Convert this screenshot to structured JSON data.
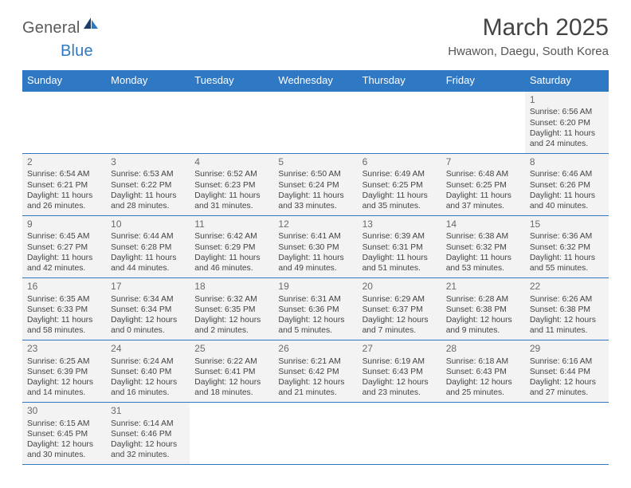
{
  "logo": {
    "general": "General",
    "blue": "Blue"
  },
  "title": "March 2025",
  "location": "Hwawon, Daegu, South Korea",
  "colors": {
    "brand_blue": "#2f78c3",
    "cell_bg": "#f3f3f3",
    "text": "#444444",
    "title": "#444444",
    "logo_gray": "#5a5a5a"
  },
  "day_headers": [
    "Sunday",
    "Monday",
    "Tuesday",
    "Wednesday",
    "Thursday",
    "Friday",
    "Saturday"
  ],
  "weeks": [
    [
      null,
      null,
      null,
      null,
      null,
      null,
      {
        "d": "1",
        "sr": "Sunrise: 6:56 AM",
        "ss": "Sunset: 6:20 PM",
        "dl1": "Daylight: 11 hours",
        "dl2": "and 24 minutes."
      }
    ],
    [
      {
        "d": "2",
        "sr": "Sunrise: 6:54 AM",
        "ss": "Sunset: 6:21 PM",
        "dl1": "Daylight: 11 hours",
        "dl2": "and 26 minutes."
      },
      {
        "d": "3",
        "sr": "Sunrise: 6:53 AM",
        "ss": "Sunset: 6:22 PM",
        "dl1": "Daylight: 11 hours",
        "dl2": "and 28 minutes."
      },
      {
        "d": "4",
        "sr": "Sunrise: 6:52 AM",
        "ss": "Sunset: 6:23 PM",
        "dl1": "Daylight: 11 hours",
        "dl2": "and 31 minutes."
      },
      {
        "d": "5",
        "sr": "Sunrise: 6:50 AM",
        "ss": "Sunset: 6:24 PM",
        "dl1": "Daylight: 11 hours",
        "dl2": "and 33 minutes."
      },
      {
        "d": "6",
        "sr": "Sunrise: 6:49 AM",
        "ss": "Sunset: 6:25 PM",
        "dl1": "Daylight: 11 hours",
        "dl2": "and 35 minutes."
      },
      {
        "d": "7",
        "sr": "Sunrise: 6:48 AM",
        "ss": "Sunset: 6:25 PM",
        "dl1": "Daylight: 11 hours",
        "dl2": "and 37 minutes."
      },
      {
        "d": "8",
        "sr": "Sunrise: 6:46 AM",
        "ss": "Sunset: 6:26 PM",
        "dl1": "Daylight: 11 hours",
        "dl2": "and 40 minutes."
      }
    ],
    [
      {
        "d": "9",
        "sr": "Sunrise: 6:45 AM",
        "ss": "Sunset: 6:27 PM",
        "dl1": "Daylight: 11 hours",
        "dl2": "and 42 minutes."
      },
      {
        "d": "10",
        "sr": "Sunrise: 6:44 AM",
        "ss": "Sunset: 6:28 PM",
        "dl1": "Daylight: 11 hours",
        "dl2": "and 44 minutes."
      },
      {
        "d": "11",
        "sr": "Sunrise: 6:42 AM",
        "ss": "Sunset: 6:29 PM",
        "dl1": "Daylight: 11 hours",
        "dl2": "and 46 minutes."
      },
      {
        "d": "12",
        "sr": "Sunrise: 6:41 AM",
        "ss": "Sunset: 6:30 PM",
        "dl1": "Daylight: 11 hours",
        "dl2": "and 49 minutes."
      },
      {
        "d": "13",
        "sr": "Sunrise: 6:39 AM",
        "ss": "Sunset: 6:31 PM",
        "dl1": "Daylight: 11 hours",
        "dl2": "and 51 minutes."
      },
      {
        "d": "14",
        "sr": "Sunrise: 6:38 AM",
        "ss": "Sunset: 6:32 PM",
        "dl1": "Daylight: 11 hours",
        "dl2": "and 53 minutes."
      },
      {
        "d": "15",
        "sr": "Sunrise: 6:36 AM",
        "ss": "Sunset: 6:32 PM",
        "dl1": "Daylight: 11 hours",
        "dl2": "and 55 minutes."
      }
    ],
    [
      {
        "d": "16",
        "sr": "Sunrise: 6:35 AM",
        "ss": "Sunset: 6:33 PM",
        "dl1": "Daylight: 11 hours",
        "dl2": "and 58 minutes."
      },
      {
        "d": "17",
        "sr": "Sunrise: 6:34 AM",
        "ss": "Sunset: 6:34 PM",
        "dl1": "Daylight: 12 hours",
        "dl2": "and 0 minutes."
      },
      {
        "d": "18",
        "sr": "Sunrise: 6:32 AM",
        "ss": "Sunset: 6:35 PM",
        "dl1": "Daylight: 12 hours",
        "dl2": "and 2 minutes."
      },
      {
        "d": "19",
        "sr": "Sunrise: 6:31 AM",
        "ss": "Sunset: 6:36 PM",
        "dl1": "Daylight: 12 hours",
        "dl2": "and 5 minutes."
      },
      {
        "d": "20",
        "sr": "Sunrise: 6:29 AM",
        "ss": "Sunset: 6:37 PM",
        "dl1": "Daylight: 12 hours",
        "dl2": "and 7 minutes."
      },
      {
        "d": "21",
        "sr": "Sunrise: 6:28 AM",
        "ss": "Sunset: 6:38 PM",
        "dl1": "Daylight: 12 hours",
        "dl2": "and 9 minutes."
      },
      {
        "d": "22",
        "sr": "Sunrise: 6:26 AM",
        "ss": "Sunset: 6:38 PM",
        "dl1": "Daylight: 12 hours",
        "dl2": "and 11 minutes."
      }
    ],
    [
      {
        "d": "23",
        "sr": "Sunrise: 6:25 AM",
        "ss": "Sunset: 6:39 PM",
        "dl1": "Daylight: 12 hours",
        "dl2": "and 14 minutes."
      },
      {
        "d": "24",
        "sr": "Sunrise: 6:24 AM",
        "ss": "Sunset: 6:40 PM",
        "dl1": "Daylight: 12 hours",
        "dl2": "and 16 minutes."
      },
      {
        "d": "25",
        "sr": "Sunrise: 6:22 AM",
        "ss": "Sunset: 6:41 PM",
        "dl1": "Daylight: 12 hours",
        "dl2": "and 18 minutes."
      },
      {
        "d": "26",
        "sr": "Sunrise: 6:21 AM",
        "ss": "Sunset: 6:42 PM",
        "dl1": "Daylight: 12 hours",
        "dl2": "and 21 minutes."
      },
      {
        "d": "27",
        "sr": "Sunrise: 6:19 AM",
        "ss": "Sunset: 6:43 PM",
        "dl1": "Daylight: 12 hours",
        "dl2": "and 23 minutes."
      },
      {
        "d": "28",
        "sr": "Sunrise: 6:18 AM",
        "ss": "Sunset: 6:43 PM",
        "dl1": "Daylight: 12 hours",
        "dl2": "and 25 minutes."
      },
      {
        "d": "29",
        "sr": "Sunrise: 6:16 AM",
        "ss": "Sunset: 6:44 PM",
        "dl1": "Daylight: 12 hours",
        "dl2": "and 27 minutes."
      }
    ],
    [
      {
        "d": "30",
        "sr": "Sunrise: 6:15 AM",
        "ss": "Sunset: 6:45 PM",
        "dl1": "Daylight: 12 hours",
        "dl2": "and 30 minutes."
      },
      {
        "d": "31",
        "sr": "Sunrise: 6:14 AM",
        "ss": "Sunset: 6:46 PM",
        "dl1": "Daylight: 12 hours",
        "dl2": "and 32 minutes."
      },
      null,
      null,
      null,
      null,
      null
    ]
  ]
}
